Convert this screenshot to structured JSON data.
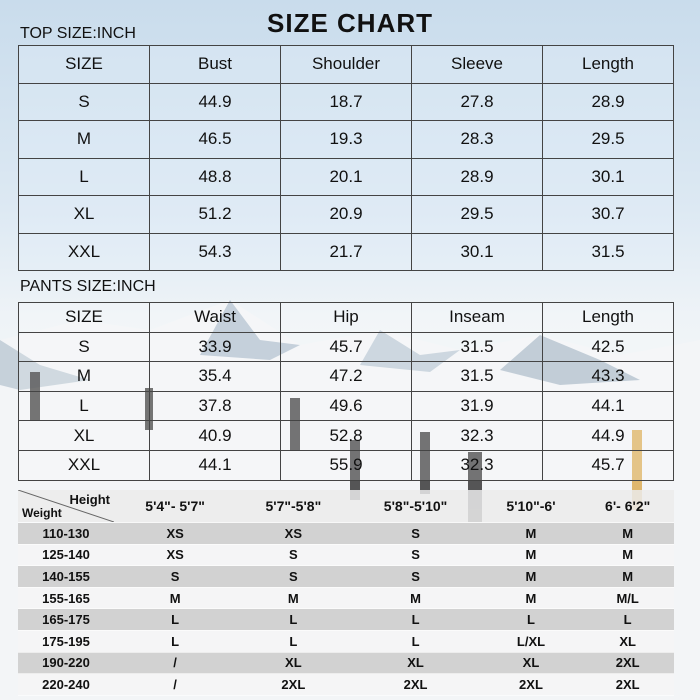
{
  "title": "SIZE CHART",
  "top": {
    "label": "TOP SIZE:INCH",
    "headers": [
      "SIZE",
      "Bust",
      "Shoulder",
      "Sleeve",
      "Length"
    ],
    "rows": [
      [
        "S",
        "44.9",
        "18.7",
        "27.8",
        "28.9"
      ],
      [
        "M",
        "46.5",
        "19.3",
        "28.3",
        "29.5"
      ],
      [
        "L",
        "48.8",
        "20.1",
        "28.9",
        "30.1"
      ],
      [
        "XL",
        "51.2",
        "20.9",
        "29.5",
        "30.7"
      ],
      [
        "XXL",
        "54.3",
        "21.7",
        "30.1",
        "31.5"
      ]
    ]
  },
  "pants": {
    "label": "PANTS SIZE:INCH",
    "headers": [
      "SIZE",
      "Waist",
      "Hip",
      "Inseam",
      "Length"
    ],
    "rows": [
      [
        "S",
        "33.9",
        "45.7",
        "31.5",
        "42.5"
      ],
      [
        "M",
        "35.4",
        "47.2",
        "31.5",
        "43.3"
      ],
      [
        "L",
        "37.8",
        "49.6",
        "31.9",
        "44.1"
      ],
      [
        "XL",
        "40.9",
        "52.8",
        "32.3",
        "44.9"
      ],
      [
        "XXL",
        "44.1",
        "55.9",
        "32.3",
        "45.7"
      ]
    ]
  },
  "fit": {
    "height_label": "Height",
    "weight_label": "Weight",
    "heights": [
      "5'4\"- 5'7\"",
      "5'7\"-5'8\"",
      "5'8\"-5'10\"",
      "5'10\"-6'",
      "6'- 6'2\""
    ],
    "rows": [
      [
        "110-130",
        "XS",
        "XS",
        "S",
        "M",
        "M"
      ],
      [
        "125-140",
        "XS",
        "S",
        "S",
        "M",
        "M"
      ],
      [
        "140-155",
        "S",
        "S",
        "S",
        "M",
        "M"
      ],
      [
        "155-165",
        "M",
        "M",
        "M",
        "M",
        "M/L"
      ],
      [
        "165-175",
        "L",
        "L",
        "L",
        "L",
        "L"
      ],
      [
        "175-195",
        "L",
        "L",
        "L",
        "L/XL",
        "XL"
      ],
      [
        "190-220",
        "/",
        "XL",
        "XL",
        "XL",
        "2XL"
      ],
      [
        "220-240",
        "/",
        "2XL",
        "2XL",
        "2XL",
        "2XL"
      ]
    ]
  }
}
